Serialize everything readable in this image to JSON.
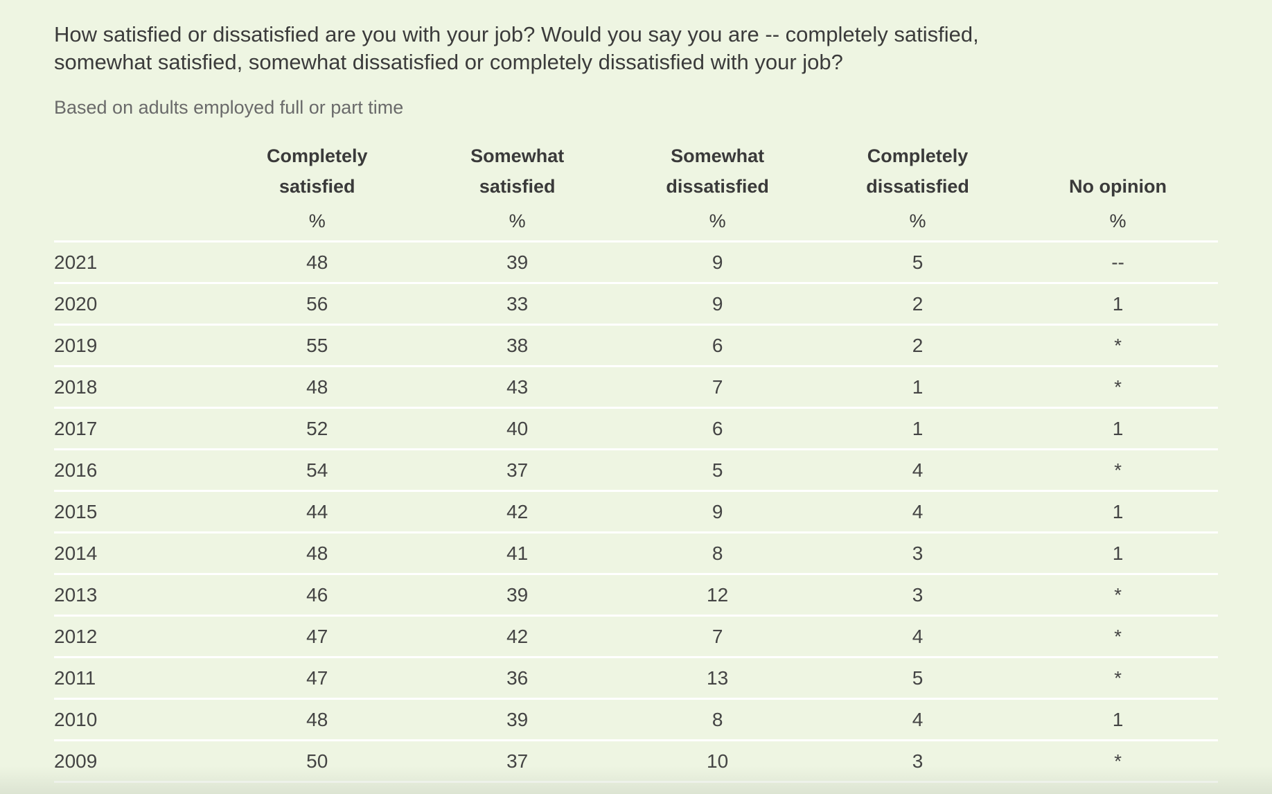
{
  "question": "How satisfied or dissatisfied are you with your job? Would you say you are -- completely satisfied, somewhat satisfied, somewhat dissatisfied or completely dissatisfied with your job?",
  "base_note": "Based on adults employed full or part time",
  "table": {
    "columns": [
      {
        "line1": "Completely",
        "line2": "satisfied",
        "unit": "%"
      },
      {
        "line1": "Somewhat",
        "line2": "satisfied",
        "unit": "%"
      },
      {
        "line1": "Somewhat",
        "line2": "dissatisfied",
        "unit": "%"
      },
      {
        "line1": "Completely",
        "line2": "dissatisfied",
        "unit": "%"
      },
      {
        "line1": "",
        "line2": "No opinion",
        "unit": "%"
      }
    ],
    "rows": [
      {
        "year": "2021",
        "values": [
          "48",
          "39",
          "9",
          "5",
          "--"
        ]
      },
      {
        "year": "2020",
        "values": [
          "56",
          "33",
          "9",
          "2",
          "1"
        ]
      },
      {
        "year": "2019",
        "values": [
          "55",
          "38",
          "6",
          "2",
          "*"
        ]
      },
      {
        "year": "2018",
        "values": [
          "48",
          "43",
          "7",
          "1",
          "*"
        ]
      },
      {
        "year": "2017",
        "values": [
          "52",
          "40",
          "6",
          "1",
          "1"
        ]
      },
      {
        "year": "2016",
        "values": [
          "54",
          "37",
          "5",
          "4",
          "*"
        ]
      },
      {
        "year": "2015",
        "values": [
          "44",
          "42",
          "9",
          "4",
          "1"
        ]
      },
      {
        "year": "2014",
        "values": [
          "48",
          "41",
          "8",
          "3",
          "1"
        ]
      },
      {
        "year": "2013",
        "values": [
          "46",
          "39",
          "12",
          "3",
          "*"
        ]
      },
      {
        "year": "2012",
        "values": [
          "47",
          "42",
          "7",
          "4",
          "*"
        ]
      },
      {
        "year": "2011",
        "values": [
          "47",
          "36",
          "13",
          "5",
          "*"
        ]
      },
      {
        "year": "2010",
        "values": [
          "48",
          "39",
          "8",
          "4",
          "1"
        ]
      },
      {
        "year": "2009",
        "values": [
          "50",
          "37",
          "10",
          "3",
          "*"
        ]
      }
    ]
  }
}
